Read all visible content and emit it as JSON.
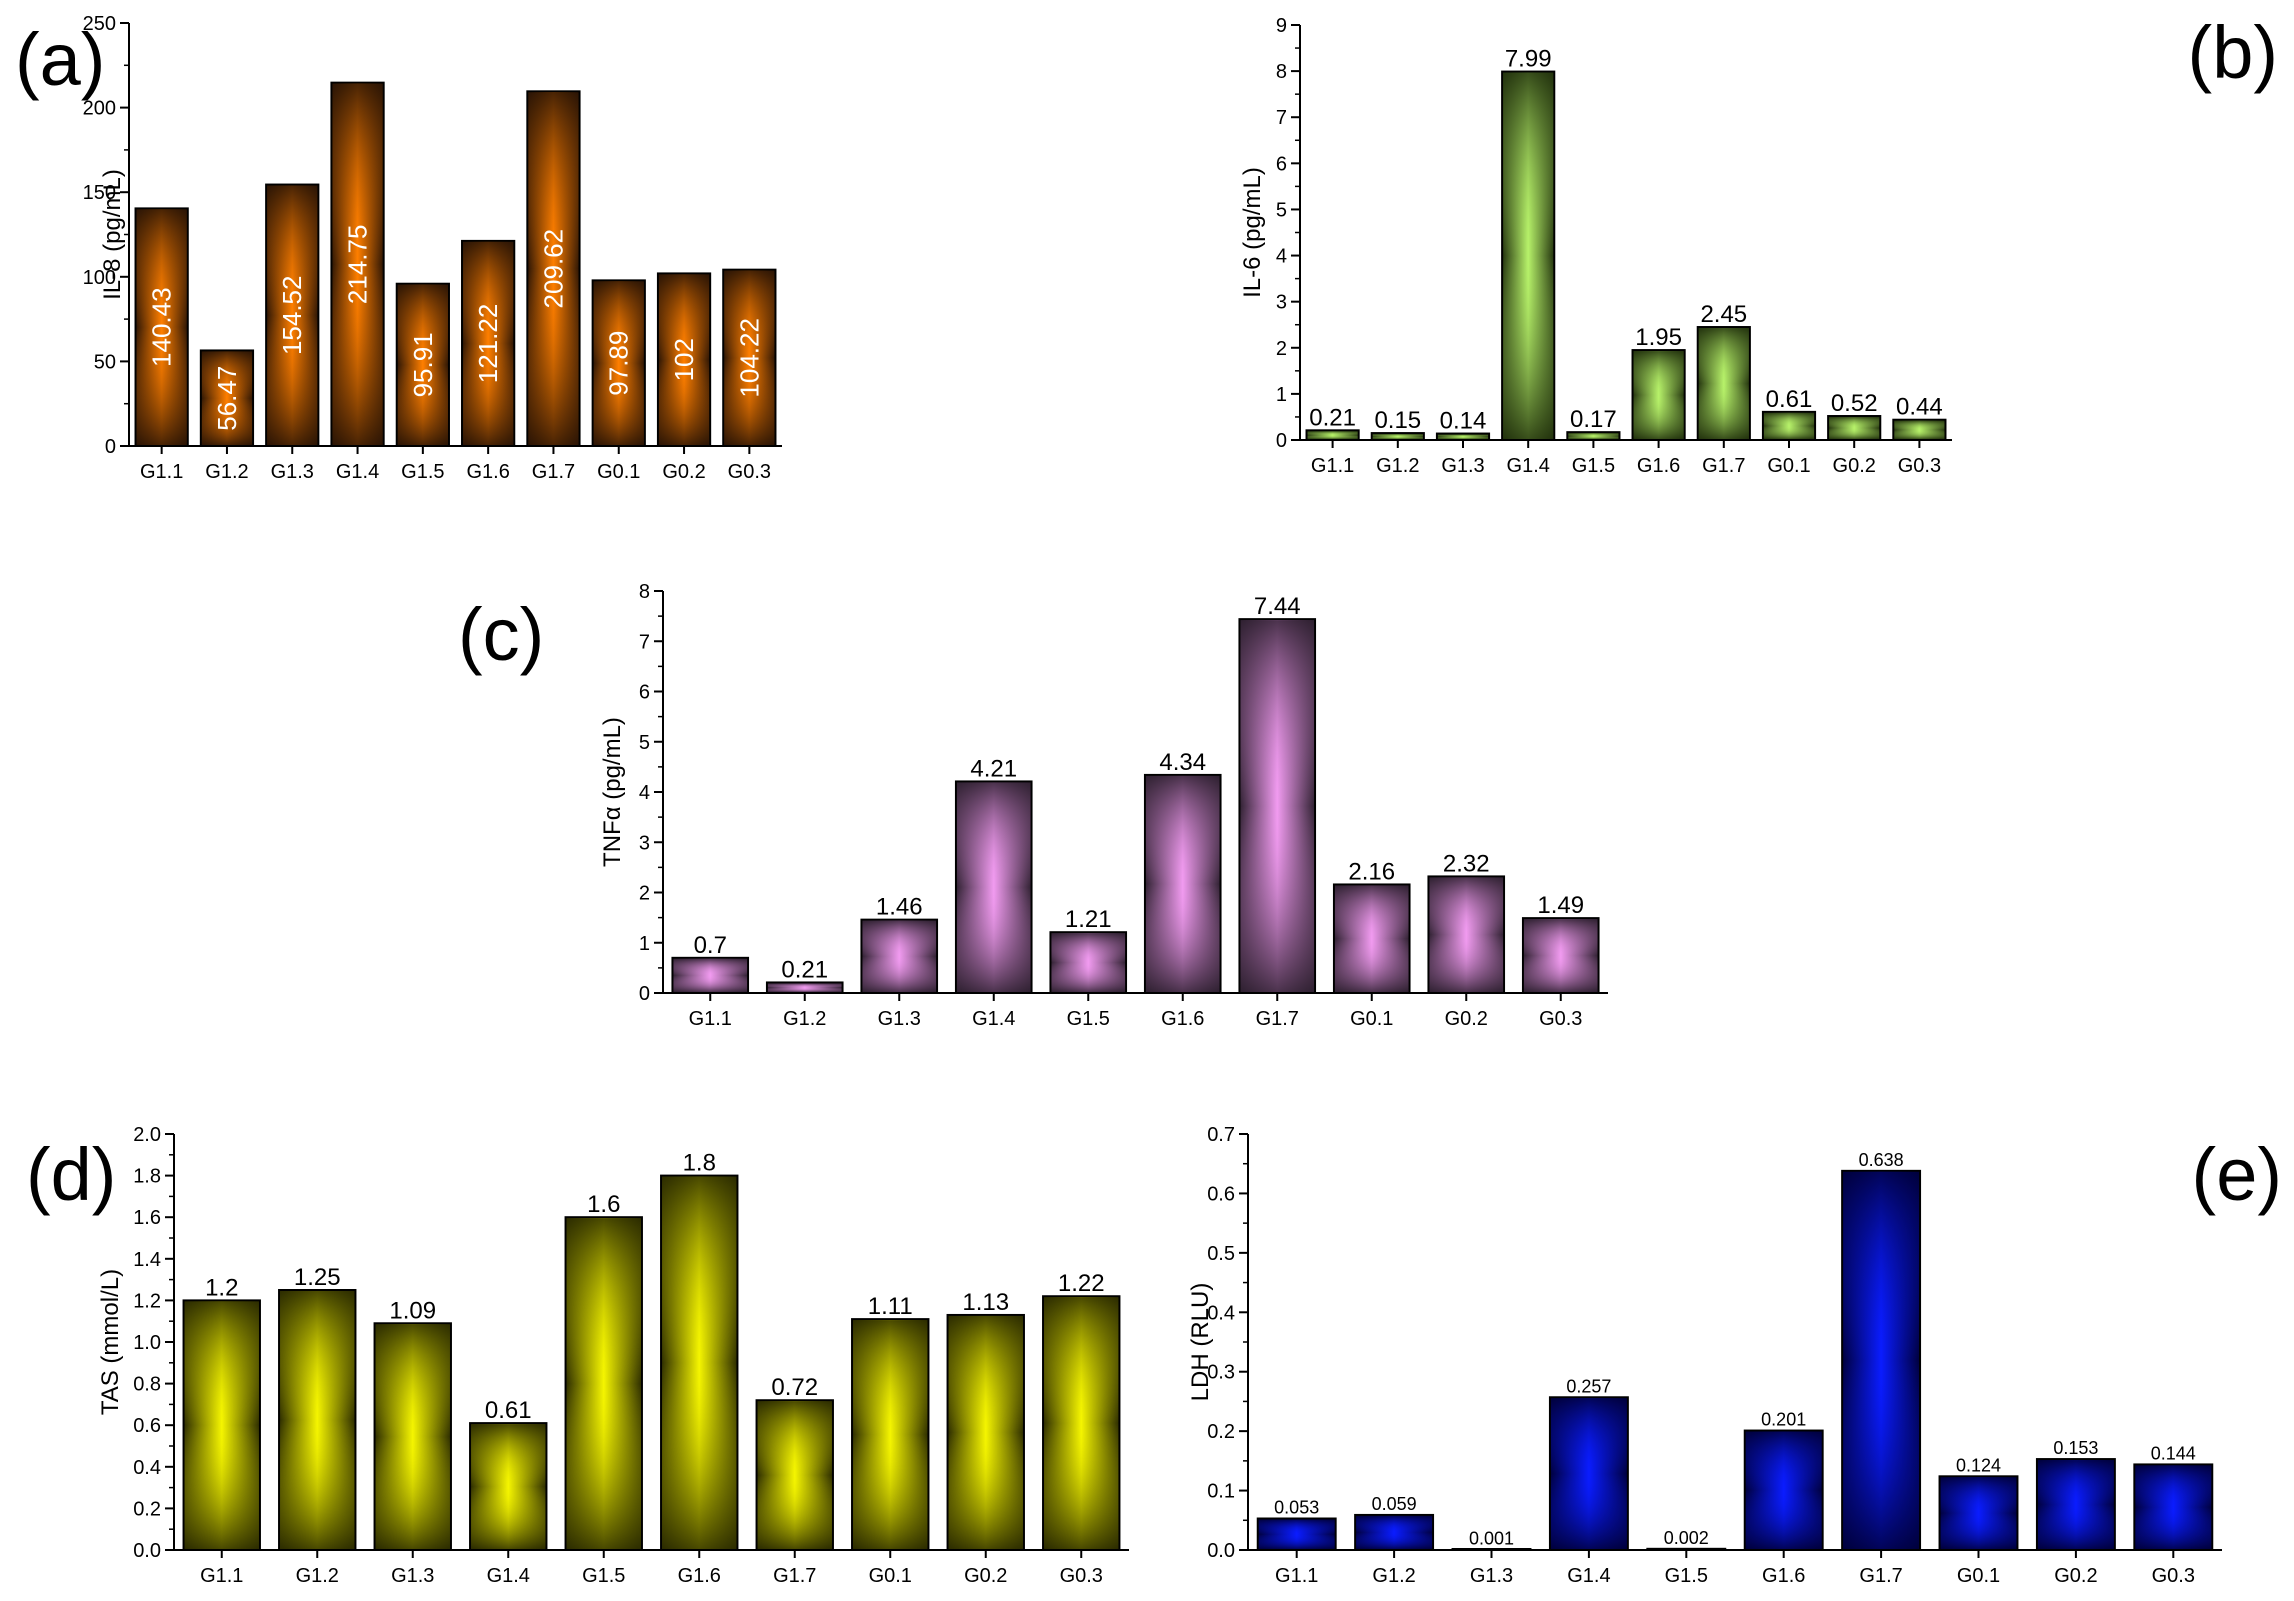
{
  "chart_data": [
    {
      "id": "a",
      "panel_label": "(a)",
      "type": "bar",
      "categories": [
        "G1.1",
        "G1.2",
        "G1.3",
        "G1.4",
        "G1.5",
        "G1.6",
        "G1.7",
        "G0.1",
        "G0.2",
        "G0.3"
      ],
      "values": [
        140.43,
        56.47,
        154.52,
        214.75,
        95.91,
        121.22,
        209.62,
        97.89,
        102,
        104.22
      ],
      "value_labels": [
        "140.43",
        "56.47",
        "154.52",
        "214.75",
        "95.91",
        "121.22",
        "209.62",
        "97.89",
        "102",
        "104.22"
      ],
      "label_position": "inside-vertical",
      "ylabel": "IL-8 (pg/mL)",
      "ylim": [
        0,
        250
      ],
      "yticks": [
        0,
        50,
        100,
        150,
        200,
        250
      ],
      "ytick_labels": [
        "0",
        "50",
        "100",
        "150",
        "200",
        "250"
      ],
      "colors": {
        "edge": "#2a1405",
        "mid": "#e2761f",
        "center": "#ff7f00",
        "outline": "#000000"
      }
    },
    {
      "id": "b",
      "panel_label": "(b)",
      "type": "bar",
      "categories": [
        "G1.1",
        "G1.2",
        "G1.3",
        "G1.4",
        "G1.5",
        "G1.6",
        "G1.7",
        "G0.1",
        "G0.2",
        "G0.3"
      ],
      "values": [
        0.21,
        0.15,
        0.14,
        7.99,
        0.17,
        1.95,
        2.45,
        0.61,
        0.52,
        0.44
      ],
      "value_labels": [
        "0.21",
        "0.15",
        "0.14",
        "7.99",
        "0.17",
        "1.95",
        "2.45",
        "0.61",
        "0.52",
        "0.44"
      ],
      "label_position": "above",
      "ylabel": "IL-6 (pg/mL)",
      "ylim": [
        0,
        9
      ],
      "yticks": [
        0,
        1,
        2,
        3,
        4,
        5,
        6,
        7,
        8,
        9
      ],
      "ytick_labels": [
        "0",
        "1",
        "2",
        "3",
        "4",
        "5",
        "6",
        "7",
        "8",
        "9"
      ],
      "colors": {
        "edge": "#22320d",
        "mid": "#7ea344",
        "center": "#b7f26a",
        "outline": "#000000"
      }
    },
    {
      "id": "c",
      "panel_label": "(c)",
      "type": "bar",
      "categories": [
        "G1.1",
        "G1.2",
        "G1.3",
        "G1.4",
        "G1.5",
        "G1.6",
        "G1.7",
        "G0.1",
        "G0.2",
        "G0.3"
      ],
      "values": [
        0.7,
        0.21,
        1.46,
        4.21,
        1.21,
        4.34,
        7.44,
        2.16,
        2.32,
        1.49
      ],
      "value_labels": [
        "0.7",
        "0.21",
        "1.46",
        "4.21",
        "1.21",
        "4.34",
        "7.44",
        "2.16",
        "2.32",
        "1.49"
      ],
      "label_position": "above",
      "ylabel": "TNFα (pg/mL)",
      "ylim": [
        0,
        8
      ],
      "yticks": [
        0,
        1,
        2,
        3,
        4,
        5,
        6,
        7,
        8
      ],
      "ytick_labels": [
        "0",
        "1",
        "2",
        "3",
        "4",
        "5",
        "6",
        "7",
        "8"
      ],
      "colors": {
        "edge": "#2e2030",
        "mid": "#a775a6",
        "center": "#f19bf0",
        "outline": "#000000"
      }
    },
    {
      "id": "d",
      "panel_label": "(d)",
      "type": "bar",
      "categories": [
        "G1.1",
        "G1.2",
        "G1.3",
        "G1.4",
        "G1.5",
        "G1.6",
        "G1.7",
        "G0.1",
        "G0.2",
        "G0.3"
      ],
      "values": [
        1.2,
        1.25,
        1.09,
        0.61,
        1.6,
        1.8,
        0.72,
        1.11,
        1.13,
        1.22
      ],
      "value_labels": [
        "1.2",
        "1.25",
        "1.09",
        "0.61",
        "1.6",
        "1.8",
        "0.72",
        "1.11",
        "1.13",
        "1.22"
      ],
      "label_position": "above",
      "ylabel": "TAS (mmol/L)",
      "ylim": [
        0,
        2.0
      ],
      "yticks": [
        0,
        0.2,
        0.4,
        0.6,
        0.8,
        1.0,
        1.2,
        1.4,
        1.6,
        1.8,
        2.0
      ],
      "ytick_labels": [
        "0.0",
        "0.2",
        "0.4",
        "0.6",
        "0.8",
        "1.0",
        "1.2",
        "1.4",
        "1.6",
        "1.8",
        "2.0"
      ],
      "colors": {
        "edge": "#2b2b00",
        "mid": "#a6a600",
        "center": "#f5f500",
        "outline": "#000000"
      }
    },
    {
      "id": "e",
      "panel_label": "(e)",
      "type": "bar",
      "categories": [
        "G1.1",
        "G1.2",
        "G1.3",
        "G1.4",
        "G1.5",
        "G1.6",
        "G1.7",
        "G0.1",
        "G0.2",
        "G0.3"
      ],
      "values": [
        0.053,
        0.059,
        0.001,
        0.257,
        0.002,
        0.201,
        0.638,
        0.124,
        0.153,
        0.144
      ],
      "value_labels": [
        "0.053",
        "0.059",
        "0.001",
        "0.257",
        "0.002",
        "0.201",
        "0.638",
        "0.124",
        "0.153",
        "0.144"
      ],
      "label_position": "above",
      "ylabel": "LDH (RLU)",
      "ylim": [
        0,
        0.7
      ],
      "yticks": [
        0,
        0.1,
        0.2,
        0.3,
        0.4,
        0.5,
        0.6,
        0.7
      ],
      "ytick_labels": [
        "0.0",
        "0.1",
        "0.2",
        "0.3",
        "0.4",
        "0.5",
        "0.6",
        "0.7"
      ],
      "colors": {
        "edge": "#00003c",
        "mid": "#0a1cb0",
        "center": "#0a1cff",
        "outline": "#000000"
      }
    }
  ]
}
